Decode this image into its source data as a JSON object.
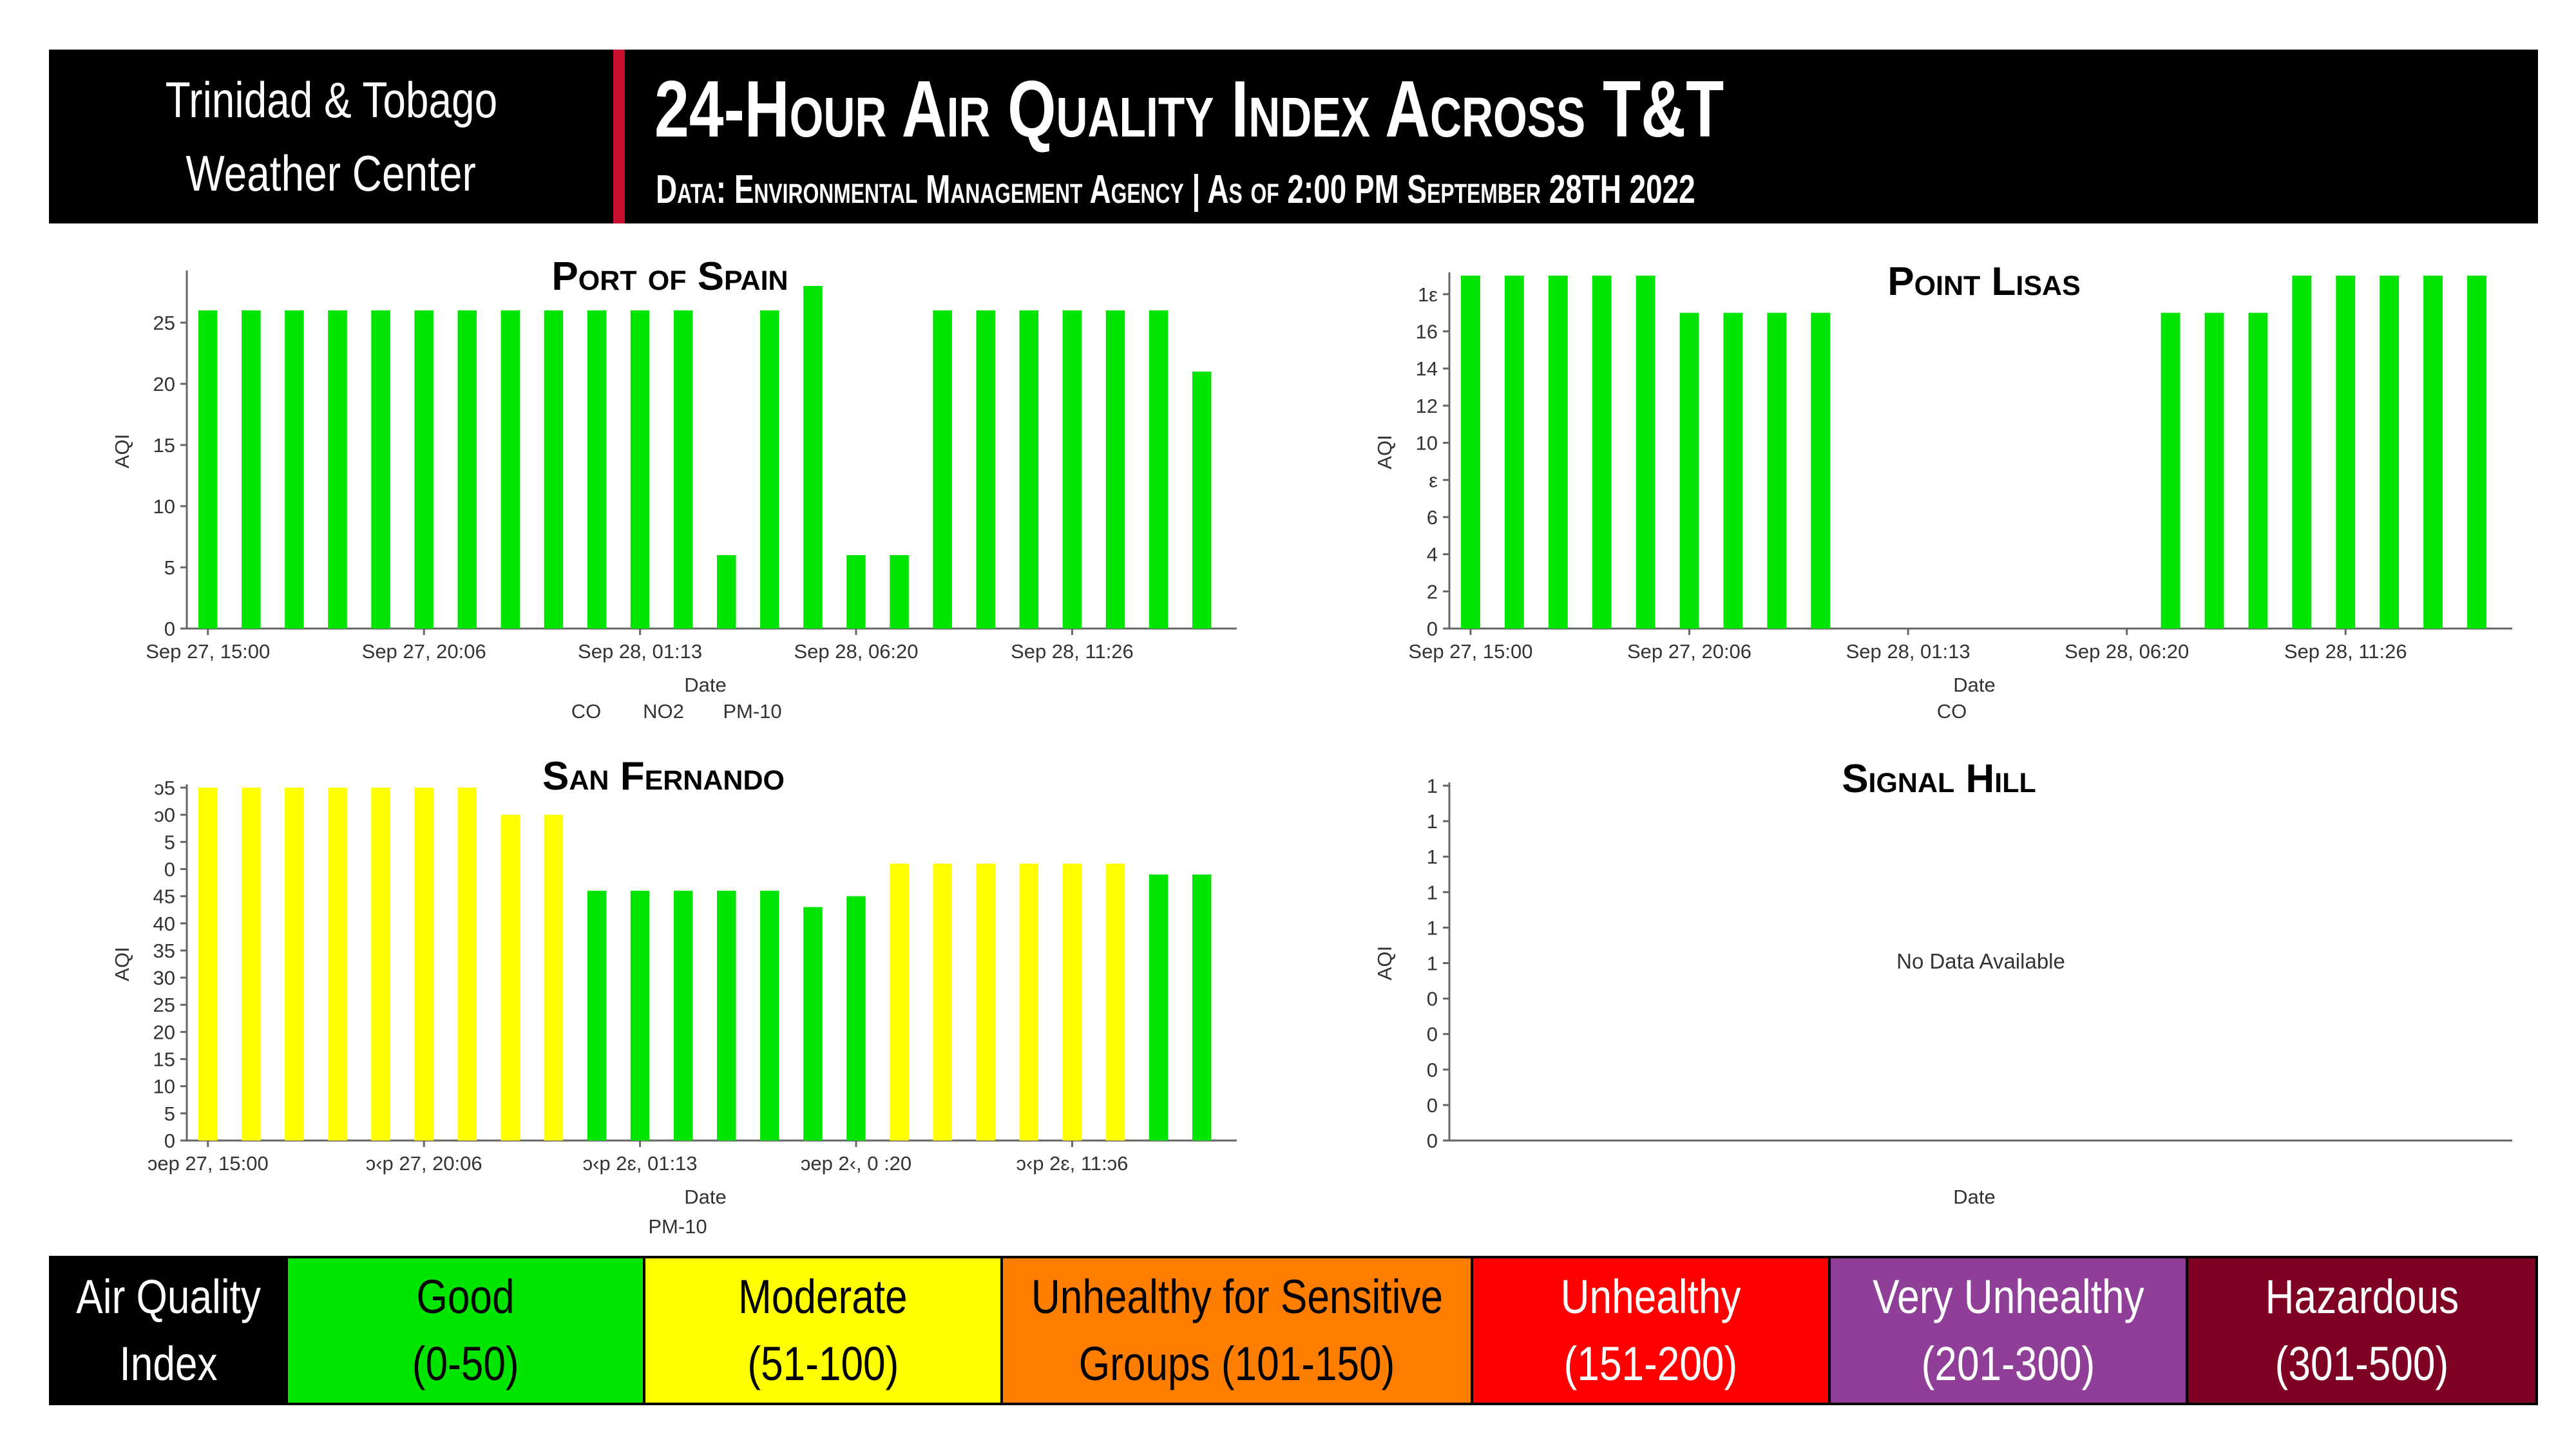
{
  "header": {
    "org_line1": "Trinidad & Tobago",
    "org_line2": "Weather Center",
    "title": "24-Hour Air Quality Index Across T&T",
    "subtitle": "Data: Environmental Management Agency | As of 2:00 PM September 28TH 2022"
  },
  "colors": {
    "good": "#00e400",
    "moderate": "#ffff00",
    "usg": "#ff7e00",
    "unhealthy": "#ff0000",
    "very_unhealthy": "#8f3f97",
    "hazardous": "#7e0023"
  },
  "chart_data": [
    {
      "type": "bar",
      "title": "Port of Spain",
      "xlabel": "Date",
      "ylabel": "AQI",
      "ylim": [
        0,
        29
      ],
      "yticks": [
        "0",
        "5",
        "10",
        "15",
        "20",
        "25"
      ],
      "xticks": [
        "Sep 27, 15:00",
        "Sep 27, 20:06",
        "Sep 28, 01:13",
        "Sep 28, 06:20",
        "Sep 28, 11:26"
      ],
      "legend_entries": [
        "CO",
        "NO2",
        "PM-10"
      ],
      "values": [
        26,
        26,
        26,
        26,
        26,
        26,
        26,
        26,
        26,
        26,
        26,
        26,
        6,
        26,
        28,
        6,
        6,
        26,
        26,
        26,
        26,
        26,
        26,
        21
      ]
    },
    {
      "type": "bar",
      "title": "Point Lisas",
      "xlabel": "Date",
      "ylabel": "AQI",
      "ylim": [
        0,
        19
      ],
      "yticks": [
        "0",
        "2",
        "4",
        "6",
        "ε",
        "10",
        "12",
        "14",
        "16",
        "1ε"
      ],
      "xticks": [
        "Sep 27, 15:00",
        "Sep 27, 20:06",
        "Sep 28, 01:13",
        "Sep 28, 06:20",
        "Sep 28, 11:26"
      ],
      "legend_entries": [
        "CO"
      ],
      "values": [
        19,
        19,
        19,
        19,
        19,
        17,
        17,
        17,
        17,
        null,
        null,
        null,
        null,
        null,
        null,
        null,
        17,
        17,
        17,
        19,
        19,
        19,
        19,
        19
      ]
    },
    {
      "type": "bar",
      "title": "San Fernando",
      "xlabel": "Date",
      "ylabel": "AQI",
      "ylim": [
        0,
        65
      ],
      "yticks": [
        "0",
        "5",
        "10",
        "15",
        "20",
        "25",
        "30",
        "35",
        "40",
        "45",
        "0",
        "5",
        "ɔ0",
        "ɔ5"
      ],
      "xticks": [
        "ɔep 27, 15:00",
        "ɔ‹p 27, 20:06",
        "ɔ‹p 2ɛ, 01:13",
        "ɔep 2‹, 0 :20",
        "ɔ‹p 2ɛ, 11:ɔ6"
      ],
      "legend_entries": [
        "PM-10"
      ],
      "values": [
        65,
        65,
        65,
        65,
        65,
        65,
        65,
        60,
        60,
        46,
        46,
        46,
        46,
        46,
        43,
        45,
        51,
        51,
        51,
        51,
        51,
        51,
        49,
        49
      ]
    },
    {
      "type": "bar",
      "title": "Signal Hill",
      "xlabel": "Date",
      "ylabel": "AQI",
      "yticks": [
        "0",
        "0",
        "0",
        "0",
        "0",
        "1",
        "1",
        "1",
        "1",
        "1",
        "1"
      ],
      "no_data_text": "No Data Available",
      "values": []
    }
  ],
  "legend": {
    "label_line1": "Air Quality",
    "label_line2": "Index",
    "categories": [
      {
        "name": "Good",
        "range": "(0-50)",
        "color": "#00e400",
        "text_color": "#000000"
      },
      {
        "name": "Moderate",
        "range": "(51-100)",
        "color": "#ffff00",
        "text_color": "#000000"
      },
      {
        "name": "Unhealthy for Sensitive",
        "range": "Groups (101-150)",
        "color": "#ff7e00",
        "text_color": "#000000"
      },
      {
        "name": "Unhealthy",
        "range": "(151-200)",
        "color": "#ff0000",
        "text_color": "#ffffff"
      },
      {
        "name": "Very Unhealthy",
        "range": "(201-300)",
        "color": "#8f3f97",
        "text_color": "#ffffff"
      },
      {
        "name": "Hazardous",
        "range": "(301-500)",
        "color": "#7e0023",
        "text_color": "#ffffff"
      }
    ]
  }
}
